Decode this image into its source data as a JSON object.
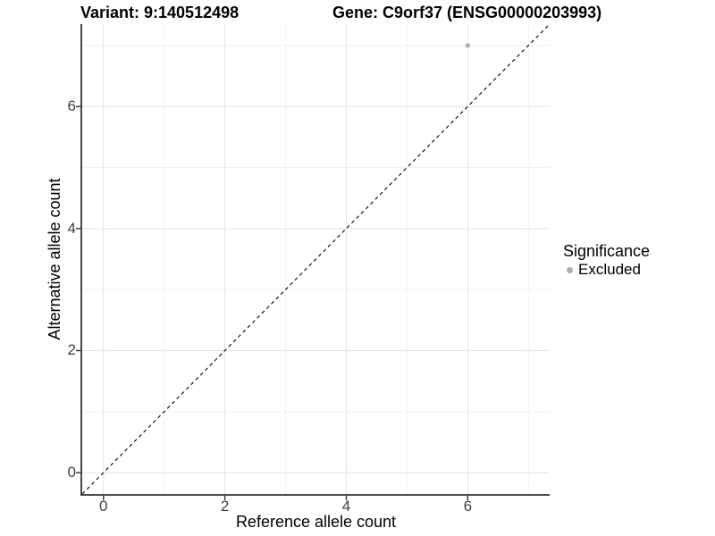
{
  "chart_data": {
    "type": "scatter",
    "titles": {
      "variant": "Variant: 9:140512498",
      "gene": "Gene: C9orf37 (ENSG00000203993)"
    },
    "xlabel": "Reference allele count",
    "ylabel": "Alternative allele count",
    "xlim": [
      -0.35,
      7.35
    ],
    "ylim": [
      -0.35,
      7.35
    ],
    "x_ticks": [
      0,
      2,
      4,
      6
    ],
    "y_ticks": [
      0,
      2,
      4,
      6
    ],
    "x_minor_ticks": [
      1,
      3,
      5,
      7
    ],
    "y_minor_ticks": [
      1,
      3,
      5,
      7
    ],
    "grid": "on",
    "identity_line": {
      "style": "dashed",
      "color": "#000000",
      "from": [
        -0.35,
        -0.35
      ],
      "to": [
        7.35,
        7.35
      ]
    },
    "series": [
      {
        "name": "Excluded",
        "color": "#b0b0b0",
        "points": [
          {
            "x": 6,
            "y": 7
          }
        ]
      }
    ],
    "legend": {
      "title": "Significance",
      "position": "right",
      "items": [
        {
          "label": "Excluded",
          "color": "#b0b0b0"
        }
      ]
    },
    "style": {
      "background": "#ffffff",
      "grid_major": "#e3e3e3",
      "grid_minor": "#f1f1f1",
      "axis_line": "#333333",
      "tick_label_color": "#404040"
    }
  }
}
